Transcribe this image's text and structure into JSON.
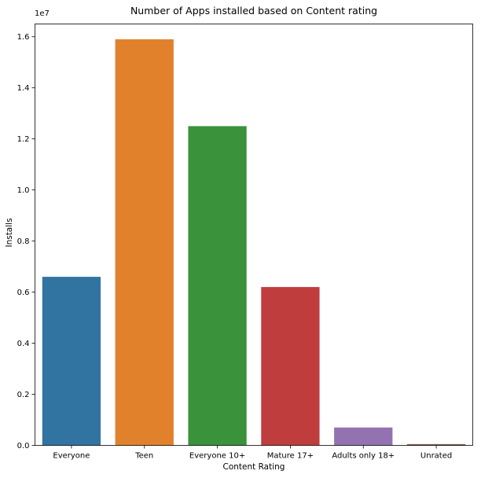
{
  "chart_data": {
    "type": "bar",
    "title": "Number of Apps installed based on Content rating",
    "xlabel": "Content Rating",
    "ylabel": "Installs",
    "y_scale_label": "1e7",
    "y_multiplier": 10000000,
    "categories": [
      "Everyone",
      "Teen",
      "Everyone 10+",
      "Mature 17+",
      "Adults only 18+",
      "Unrated"
    ],
    "values": [
      6600000,
      15900000,
      12500000,
      6200000,
      700000,
      50000
    ],
    "colors": [
      "#3274a1",
      "#e1812c",
      "#3a923a",
      "#c03d3e",
      "#9372b2",
      "#845b53"
    ],
    "ylim": [
      0,
      16500000
    ],
    "yticks": [
      0,
      2000000,
      4000000,
      6000000,
      8000000,
      10000000,
      12000000,
      14000000,
      16000000
    ],
    "ytick_labels": [
      "0.0",
      "0.2",
      "0.4",
      "0.6",
      "0.8",
      "1.0",
      "1.2",
      "1.4",
      "1.6"
    ],
    "grid": false,
    "legend": "none"
  }
}
